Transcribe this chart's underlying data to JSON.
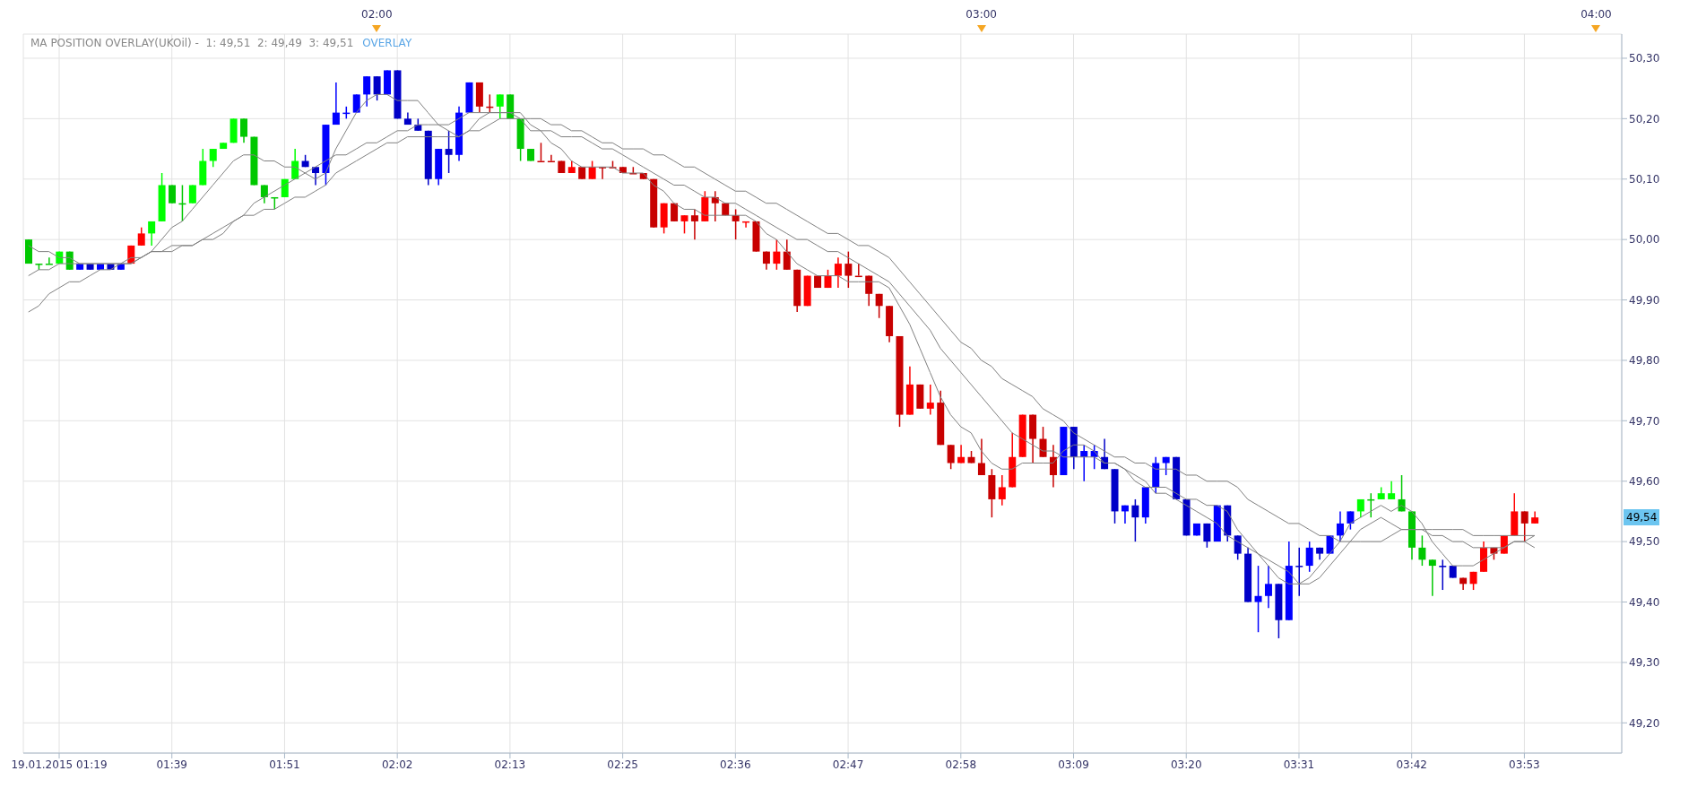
{
  "chart_data": {
    "type": "candlestick",
    "categories": [
      null,
      null,
      null,
      "19.01.2015 01:19",
      null,
      null,
      null,
      null,
      null,
      null,
      null,
      null,
      null,
      null,
      "01:39",
      null,
      null,
      null,
      null,
      null,
      null,
      null,
      null,
      null,
      null,
      "01:51",
      null,
      null,
      null,
      null,
      null,
      null,
      null,
      null,
      null,
      null,
      "02:02",
      null,
      null,
      null,
      null,
      null,
      null,
      null,
      null,
      null,
      null,
      "02:13",
      null,
      null,
      null,
      null,
      null,
      null,
      null,
      null,
      null,
      null,
      "02:25",
      null,
      null,
      null,
      null,
      null,
      null,
      null,
      null,
      null,
      null,
      "02:36",
      null,
      null,
      null,
      null,
      null,
      null,
      null,
      null,
      null,
      null,
      "02:47",
      null,
      null,
      null,
      null,
      null,
      null,
      null,
      null,
      null,
      null,
      "02:58",
      null,
      null,
      null,
      null,
      null,
      null,
      null,
      null,
      null,
      null,
      "03:09",
      null,
      null,
      null,
      null,
      null,
      null,
      null,
      null,
      null,
      null,
      "03:20",
      null,
      null,
      null,
      null,
      null,
      null,
      null,
      null,
      null,
      null,
      "03:31",
      null,
      null,
      null,
      null,
      null,
      null,
      null,
      null,
      null,
      null,
      "03:42",
      null,
      null,
      null,
      null,
      null,
      null,
      null,
      null,
      null,
      null,
      "03:53",
      null,
      null,
      null,
      null,
      null,
      null,
      null,
      null,
      null
    ],
    "ohlc": [
      [
        50.0,
        50.0,
        49.96,
        49.96
      ],
      [
        49.96,
        49.96,
        49.95,
        49.96
      ],
      [
        49.96,
        49.97,
        49.96,
        49.96
      ],
      [
        49.96,
        49.98,
        49.96,
        49.98
      ],
      [
        49.98,
        49.98,
        49.95,
        49.95
      ],
      [
        49.95,
        49.96,
        49.95,
        49.96
      ],
      [
        49.96,
        49.96,
        49.95,
        49.95
      ],
      [
        49.95,
        49.96,
        49.95,
        49.96
      ],
      [
        49.96,
        49.96,
        49.95,
        49.95
      ],
      [
        49.95,
        49.96,
        49.95,
        49.96
      ],
      [
        49.96,
        49.99,
        49.96,
        49.99
      ],
      [
        49.99,
        50.02,
        49.99,
        50.01
      ],
      [
        50.01,
        50.03,
        49.99,
        50.03
      ],
      [
        50.03,
        50.11,
        50.03,
        50.09
      ],
      [
        50.09,
        50.09,
        50.06,
        50.06
      ],
      [
        50.06,
        50.09,
        50.03,
        50.06
      ],
      [
        50.06,
        50.09,
        50.06,
        50.09
      ],
      [
        50.09,
        50.15,
        50.09,
        50.13
      ],
      [
        50.13,
        50.15,
        50.12,
        50.15
      ],
      [
        50.15,
        50.16,
        50.15,
        50.16
      ],
      [
        50.16,
        50.2,
        50.16,
        50.2
      ],
      [
        50.2,
        50.2,
        50.16,
        50.17
      ],
      [
        50.17,
        50.17,
        50.09,
        50.09
      ],
      [
        50.09,
        50.09,
        50.06,
        50.07
      ],
      [
        50.07,
        50.07,
        50.05,
        50.07
      ],
      [
        50.07,
        50.1,
        50.07,
        50.1
      ],
      [
        50.1,
        50.15,
        50.1,
        50.13
      ],
      [
        50.13,
        50.14,
        50.12,
        50.12
      ],
      [
        50.12,
        50.12,
        50.09,
        50.11
      ],
      [
        50.11,
        50.19,
        50.09,
        50.19
      ],
      [
        50.19,
        50.26,
        50.19,
        50.21
      ],
      [
        50.21,
        50.22,
        50.2,
        50.21
      ],
      [
        50.21,
        50.24,
        50.21,
        50.24
      ],
      [
        50.24,
        50.27,
        50.22,
        50.27
      ],
      [
        50.27,
        50.27,
        50.23,
        50.24
      ],
      [
        50.24,
        50.28,
        50.24,
        50.28
      ],
      [
        50.28,
        50.28,
        50.2,
        50.2
      ],
      [
        50.2,
        50.21,
        50.19,
        50.19
      ],
      [
        50.19,
        50.2,
        50.18,
        50.18
      ],
      [
        50.18,
        50.18,
        50.09,
        50.1
      ],
      [
        50.1,
        50.15,
        50.09,
        50.15
      ],
      [
        50.15,
        50.18,
        50.11,
        50.14
      ],
      [
        50.14,
        50.22,
        50.13,
        50.21
      ],
      [
        50.21,
        50.26,
        50.21,
        50.26
      ],
      [
        50.26,
        50.26,
        50.21,
        50.22
      ],
      [
        50.22,
        50.24,
        50.21,
        50.22
      ],
      [
        50.22,
        50.24,
        50.2,
        50.24
      ],
      [
        50.24,
        50.24,
        50.2,
        50.2
      ],
      [
        50.2,
        50.2,
        50.13,
        50.15
      ],
      [
        50.15,
        50.15,
        50.13,
        50.13
      ],
      [
        50.13,
        50.16,
        50.13,
        50.13
      ],
      [
        50.13,
        50.14,
        50.13,
        50.13
      ],
      [
        50.13,
        50.13,
        50.11,
        50.11
      ],
      [
        50.11,
        50.13,
        50.11,
        50.12
      ],
      [
        50.12,
        50.12,
        50.1,
        50.1
      ],
      [
        50.1,
        50.13,
        50.1,
        50.12
      ],
      [
        50.12,
        50.12,
        50.1,
        50.12
      ],
      [
        50.12,
        50.13,
        50.12,
        50.12
      ],
      [
        50.12,
        50.12,
        50.11,
        50.11
      ],
      [
        50.11,
        50.12,
        50.11,
        50.11
      ],
      [
        50.11,
        50.11,
        50.1,
        50.1
      ],
      [
        50.1,
        50.1,
        50.02,
        50.02
      ],
      [
        50.02,
        50.06,
        50.01,
        50.06
      ],
      [
        50.06,
        50.06,
        50.03,
        50.03
      ],
      [
        50.03,
        50.04,
        50.01,
        50.04
      ],
      [
        50.04,
        50.05,
        50.0,
        50.03
      ],
      [
        50.03,
        50.08,
        50.03,
        50.07
      ],
      [
        50.07,
        50.08,
        50.03,
        50.06
      ],
      [
        50.06,
        50.06,
        50.04,
        50.04
      ],
      [
        50.04,
        50.05,
        50.0,
        50.03
      ],
      [
        50.03,
        50.03,
        50.02,
        50.03
      ],
      [
        50.03,
        50.03,
        49.98,
        49.98
      ],
      [
        49.98,
        49.98,
        49.95,
        49.96
      ],
      [
        49.96,
        50.0,
        49.95,
        49.98
      ],
      [
        49.98,
        50.0,
        49.95,
        49.95
      ],
      [
        49.95,
        49.95,
        49.88,
        49.89
      ],
      [
        49.89,
        49.94,
        49.89,
        49.94
      ],
      [
        49.94,
        49.94,
        49.92,
        49.92
      ],
      [
        49.92,
        49.95,
        49.92,
        49.94
      ],
      [
        49.94,
        49.97,
        49.92,
        49.96
      ],
      [
        49.96,
        49.98,
        49.92,
        49.94
      ],
      [
        49.94,
        49.96,
        49.94,
        49.94
      ],
      [
        49.94,
        49.94,
        49.89,
        49.91
      ],
      [
        49.91,
        49.91,
        49.87,
        49.89
      ],
      [
        49.89,
        49.89,
        49.83,
        49.84
      ],
      [
        49.84,
        49.84,
        49.69,
        49.71
      ],
      [
        49.71,
        49.79,
        49.71,
        49.76
      ],
      [
        49.76,
        49.76,
        49.72,
        49.72
      ],
      [
        49.72,
        49.76,
        49.71,
        49.73
      ],
      [
        49.73,
        49.75,
        49.66,
        49.66
      ],
      [
        49.66,
        49.66,
        49.62,
        49.63
      ],
      [
        49.63,
        49.66,
        49.63,
        49.64
      ],
      [
        49.64,
        49.65,
        49.63,
        49.63
      ],
      [
        49.63,
        49.67,
        49.61,
        49.61
      ],
      [
        49.61,
        49.62,
        49.54,
        49.57
      ],
      [
        49.57,
        49.61,
        49.56,
        49.59
      ],
      [
        49.59,
        49.68,
        49.59,
        49.64
      ],
      [
        49.64,
        49.71,
        49.64,
        49.71
      ],
      [
        49.71,
        49.71,
        49.63,
        49.67
      ],
      [
        49.67,
        49.69,
        49.64,
        49.64
      ],
      [
        49.64,
        49.66,
        49.59,
        49.61
      ],
      [
        49.61,
        49.69,
        49.61,
        49.69
      ],
      [
        49.69,
        49.69,
        49.62,
        49.64
      ],
      [
        49.64,
        49.66,
        49.6,
        49.65
      ],
      [
        49.64,
        49.66,
        49.62,
        49.65
      ],
      [
        49.64,
        49.67,
        49.62,
        49.62
      ],
      [
        49.62,
        49.62,
        49.53,
        49.55
      ],
      [
        49.55,
        49.56,
        49.53,
        49.56
      ],
      [
        49.56,
        49.57,
        49.5,
        49.54
      ],
      [
        49.54,
        49.59,
        49.53,
        49.59
      ],
      [
        49.59,
        49.64,
        49.58,
        49.63
      ],
      [
        49.63,
        49.64,
        49.61,
        49.64
      ],
      [
        49.64,
        49.64,
        49.57,
        49.57
      ],
      [
        49.57,
        49.57,
        49.51,
        49.51
      ],
      [
        49.51,
        49.53,
        49.51,
        49.53
      ],
      [
        49.53,
        49.53,
        49.49,
        49.5
      ],
      [
        49.5,
        49.56,
        49.5,
        49.56
      ],
      [
        49.56,
        49.56,
        49.5,
        49.51
      ],
      [
        49.51,
        49.51,
        49.47,
        49.48
      ],
      [
        49.48,
        49.49,
        49.4,
        49.4
      ],
      [
        49.4,
        49.46,
        49.35,
        49.41
      ],
      [
        49.41,
        49.46,
        49.39,
        49.43
      ],
      [
        49.43,
        49.43,
        49.34,
        49.37
      ],
      [
        49.37,
        49.5,
        49.37,
        49.46
      ],
      [
        49.46,
        49.49,
        49.41,
        49.46
      ],
      [
        49.46,
        49.5,
        49.45,
        49.49
      ],
      [
        49.49,
        49.49,
        49.47,
        49.48
      ],
      [
        49.48,
        49.51,
        49.48,
        49.51
      ],
      [
        49.51,
        49.55,
        49.5,
        49.53
      ],
      [
        49.53,
        49.55,
        49.52,
        49.55
      ],
      [
        49.55,
        49.57,
        49.54,
        49.57
      ],
      [
        49.57,
        49.58,
        49.54,
        49.57
      ],
      [
        49.57,
        49.59,
        49.57,
        49.58
      ],
      [
        49.58,
        49.6,
        49.57,
        49.57
      ],
      [
        49.57,
        49.61,
        49.55,
        49.55
      ],
      [
        49.55,
        49.55,
        49.47,
        49.49
      ],
      [
        49.49,
        49.51,
        49.46,
        49.47
      ],
      [
        49.47,
        49.47,
        49.41,
        49.46
      ],
      [
        49.46,
        49.47,
        49.42,
        49.46
      ],
      [
        49.46,
        49.46,
        49.44,
        49.44
      ],
      [
        49.44,
        49.44,
        49.42,
        49.43
      ],
      [
        49.43,
        49.45,
        49.42,
        49.45
      ],
      [
        49.45,
        49.5,
        49.45,
        49.49
      ],
      [
        49.49,
        49.49,
        49.47,
        49.48
      ],
      [
        49.48,
        49.51,
        49.48,
        49.51
      ],
      [
        49.51,
        49.58,
        49.51,
        49.55
      ],
      [
        49.55,
        49.55,
        49.5,
        49.53
      ],
      [
        49.53,
        49.55,
        49.53,
        49.54
      ],
      null,
      null,
      null,
      null,
      null,
      null,
      null,
      null
    ],
    "colors": [
      "#00c800",
      "#00c800",
      "#00c800",
      "#00ff00",
      "#00c800",
      "#0000ff",
      "#0000c8",
      "#0000ff",
      "#0000c8",
      "#0000ff",
      "#ff0000",
      "#ff0000",
      "#00ff00",
      "#00ff00",
      "#00c800",
      "#00c800",
      "#00ff00",
      "#00ff00",
      "#00ff00",
      "#00ff00",
      "#00ff00",
      "#00c800",
      "#00c800",
      "#00c800",
      "#00c800",
      "#00ff00",
      "#00ff00",
      "#0000c8",
      "#0000c8",
      "#0000ff",
      "#0000ff",
      "#0000ff",
      "#0000ff",
      "#0000ff",
      "#0000c8",
      "#0000ff",
      "#0000c8",
      "#0000c8",
      "#0000c8",
      "#0000c8",
      "#0000ff",
      "#0000c8",
      "#0000ff",
      "#0000ff",
      "#c80000",
      "#c80000",
      "#00ff00",
      "#00c800",
      "#00c800",
      "#00c800",
      "#c80000",
      "#c80000",
      "#c80000",
      "#ff0000",
      "#c80000",
      "#ff0000",
      "#c80000",
      "#c80000",
      "#c80000",
      "#c80000",
      "#c80000",
      "#c80000",
      "#ff0000",
      "#c80000",
      "#ff0000",
      "#c80000",
      "#ff0000",
      "#c80000",
      "#c80000",
      "#c80000",
      "#ff0000",
      "#c80000",
      "#c80000",
      "#ff0000",
      "#c80000",
      "#c80000",
      "#ff0000",
      "#c80000",
      "#ff0000",
      "#ff0000",
      "#c80000",
      "#c80000",
      "#c80000",
      "#c80000",
      "#c80000",
      "#c80000",
      "#ff0000",
      "#c80000",
      "#ff0000",
      "#c80000",
      "#c80000",
      "#ff0000",
      "#c80000",
      "#c80000",
      "#c80000",
      "#ff0000",
      "#ff0000",
      "#ff0000",
      "#c80000",
      "#c80000",
      "#c80000",
      "#0000ff",
      "#0000c8",
      "#0000ff",
      "#0000ff",
      "#0000c8",
      "#0000c8",
      "#0000ff",
      "#0000c8",
      "#0000ff",
      "#0000ff",
      "#0000ff",
      "#0000c8",
      "#0000c8",
      "#0000ff",
      "#0000c8",
      "#0000ff",
      "#0000c8",
      "#0000c8",
      "#0000c8",
      "#0000ff",
      "#0000ff",
      "#0000c8",
      "#0000ff",
      "#0000c8",
      "#0000ff",
      "#0000c8",
      "#0000ff",
      "#0000ff",
      "#0000ff",
      "#00ff00",
      "#00c800",
      "#00ff00",
      "#00ff00",
      "#00c800",
      "#00c800",
      "#00c800",
      "#00c800",
      "#0000c8",
      "#0000c8",
      "#c80000",
      "#ff0000",
      "#ff0000",
      "#c80000",
      "#ff0000",
      "#ff0000",
      "#c80000",
      "#ff0000",
      null,
      null,
      null,
      null,
      null,
      null,
      null,
      null
    ],
    "series": [
      {
        "type": "line",
        "color": "#808080",
        "values": [
          49.99,
          49.98,
          49.98,
          49.97,
          49.97,
          49.96,
          49.96,
          49.96,
          49.96,
          49.96,
          49.96,
          49.97,
          49.98,
          50.0,
          50.02,
          50.03,
          50.05,
          50.07,
          50.09,
          50.11,
          50.13,
          50.14,
          50.14,
          50.13,
          50.13,
          50.12,
          50.12,
          50.11,
          50.1,
          50.11,
          50.15,
          50.18,
          50.21,
          50.23,
          50.24,
          50.24,
          50.23,
          50.23,
          50.23,
          50.21,
          50.19,
          50.18,
          50.17,
          50.18,
          50.2,
          50.21,
          50.21,
          50.21,
          50.21,
          50.19,
          50.18,
          50.16,
          50.15,
          50.13,
          50.12,
          50.12,
          50.12,
          50.12,
          50.11,
          50.11,
          50.11,
          50.09,
          50.08,
          50.06,
          50.05,
          50.05,
          50.04,
          50.04,
          50.04,
          50.04,
          50.04,
          50.03,
          50.01,
          50.0,
          49.98,
          49.96,
          49.95,
          49.94,
          49.94,
          49.94,
          49.93,
          49.93,
          49.93,
          49.93,
          49.92,
          49.89,
          49.86,
          49.82,
          49.78,
          49.74,
          49.71,
          49.69,
          49.68,
          49.65,
          49.63,
          49.62,
          49.62,
          49.63,
          49.63,
          49.63,
          49.63,
          49.65,
          49.66,
          49.66,
          49.65,
          49.63,
          49.63,
          49.62,
          49.6,
          49.59,
          49.59,
          49.59,
          49.58,
          49.57,
          49.57,
          49.56,
          49.56,
          49.55,
          49.52,
          49.5,
          49.48,
          49.46,
          49.44,
          49.43,
          49.43,
          49.44,
          49.46,
          49.48,
          49.5,
          49.53,
          49.54,
          49.55,
          49.56,
          49.55,
          49.56,
          49.55,
          49.53,
          49.5,
          49.48,
          49.46,
          49.46,
          49.46,
          49.47,
          49.48,
          49.49,
          49.5,
          49.5,
          49.51,
          null,
          null,
          null,
          null,
          null,
          null,
          null,
          null
        ]
      },
      {
        "type": "line",
        "color": "#808080",
        "values": [
          49.94,
          49.95,
          49.95,
          49.96,
          49.96,
          49.96,
          49.96,
          49.96,
          49.96,
          49.96,
          49.97,
          49.97,
          49.98,
          49.98,
          49.98,
          49.99,
          49.99,
          50.0,
          50.0,
          50.01,
          50.03,
          50.04,
          50.06,
          50.07,
          50.08,
          50.09,
          50.1,
          50.11,
          50.12,
          50.13,
          50.14,
          50.14,
          50.15,
          50.16,
          50.16,
          50.17,
          50.18,
          50.18,
          50.19,
          50.19,
          50.19,
          50.19,
          50.2,
          50.21,
          50.21,
          50.21,
          50.21,
          50.21,
          50.2,
          50.18,
          50.18,
          50.18,
          50.17,
          50.17,
          50.17,
          50.16,
          50.15,
          50.15,
          50.14,
          50.13,
          50.12,
          50.11,
          50.1,
          50.09,
          50.09,
          50.08,
          50.07,
          50.07,
          50.06,
          50.06,
          50.05,
          50.04,
          50.03,
          50.02,
          50.01,
          50.0,
          50.0,
          49.99,
          49.98,
          49.98,
          49.97,
          49.96,
          49.95,
          49.94,
          49.93,
          49.91,
          49.89,
          49.87,
          49.85,
          49.82,
          49.8,
          49.78,
          49.76,
          49.74,
          49.72,
          49.7,
          49.68,
          49.67,
          49.66,
          49.65,
          49.65,
          49.64,
          49.64,
          49.64,
          49.64,
          49.63,
          49.63,
          49.62,
          49.61,
          49.6,
          49.58,
          49.58,
          49.57,
          49.56,
          49.55,
          49.54,
          49.53,
          49.51,
          49.5,
          49.49,
          49.48,
          49.47,
          49.46,
          49.45,
          49.43,
          49.43,
          49.44,
          49.46,
          49.48,
          49.5,
          49.52,
          49.53,
          49.54,
          49.53,
          49.52,
          49.52,
          49.52,
          49.51,
          49.51,
          49.5,
          49.5,
          49.49,
          49.49,
          49.49,
          49.49,
          49.5,
          49.5,
          49.49,
          null,
          null,
          null,
          null,
          null,
          null,
          null,
          null
        ]
      },
      {
        "type": "line",
        "color": "#808080",
        "values": [
          49.88,
          49.89,
          49.91,
          49.92,
          49.93,
          49.93,
          49.94,
          49.95,
          49.95,
          49.96,
          49.96,
          49.97,
          49.98,
          49.98,
          49.99,
          49.99,
          49.99,
          50.0,
          50.01,
          50.02,
          50.03,
          50.04,
          50.04,
          50.05,
          50.05,
          50.06,
          50.07,
          50.07,
          50.08,
          50.09,
          50.11,
          50.12,
          50.13,
          50.14,
          50.15,
          50.16,
          50.16,
          50.17,
          50.17,
          50.17,
          50.17,
          50.17,
          50.17,
          50.18,
          50.18,
          50.19,
          50.2,
          50.2,
          50.2,
          50.2,
          50.2,
          50.19,
          50.19,
          50.18,
          50.18,
          50.17,
          50.16,
          50.16,
          50.15,
          50.15,
          50.15,
          50.14,
          50.14,
          50.13,
          50.12,
          50.12,
          50.11,
          50.1,
          50.09,
          50.08,
          50.08,
          50.07,
          50.06,
          50.06,
          50.05,
          50.04,
          50.03,
          50.02,
          50.01,
          50.01,
          50.0,
          49.99,
          49.99,
          49.98,
          49.97,
          49.95,
          49.93,
          49.91,
          49.89,
          49.87,
          49.85,
          49.83,
          49.82,
          49.8,
          49.79,
          49.77,
          49.76,
          49.75,
          49.74,
          49.72,
          49.71,
          49.7,
          49.68,
          49.67,
          49.66,
          49.65,
          49.64,
          49.64,
          49.63,
          49.63,
          49.62,
          49.62,
          49.62,
          49.61,
          49.61,
          49.6,
          49.6,
          49.6,
          49.59,
          49.57,
          49.56,
          49.55,
          49.54,
          49.53,
          49.53,
          49.52,
          49.51,
          49.51,
          49.5,
          49.5,
          49.5,
          49.5,
          49.5,
          49.51,
          49.52,
          49.52,
          49.52,
          49.52,
          49.52,
          49.52,
          49.52,
          49.51,
          49.51,
          49.51,
          49.51,
          49.51,
          49.51,
          49.51,
          null,
          null,
          null,
          null,
          null,
          null,
          null,
          null
        ]
      }
    ],
    "ylim": [
      49.15,
      50.34
    ],
    "yticks": [
      {
        "value": 49.2,
        "label": "49,20"
      },
      {
        "value": 49.3,
        "label": "49,30"
      },
      {
        "value": 49.4,
        "label": "49,40"
      },
      {
        "value": 49.5,
        "label": "49,50"
      },
      {
        "value": 49.6,
        "label": "49,60"
      },
      {
        "value": 49.7,
        "label": "49,70"
      },
      {
        "value": 49.8,
        "label": "49,80"
      },
      {
        "value": 49.9,
        "label": "49,90"
      },
      {
        "value": 50.0,
        "label": "50,00"
      },
      {
        "value": 50.1,
        "label": "50,10"
      },
      {
        "value": 50.2,
        "label": "50,20"
      },
      {
        "value": 50.3,
        "label": "50,30"
      }
    ],
    "grid": true,
    "annotations": [
      "MA POSITION OVERLAY(UKOil) -  1: 49,51  2: 49,49  3: 49,51",
      "OVERLAY",
      "02:00",
      "03:00",
      "04:00",
      {
        "text": "49,54",
        "y": 49.54
      }
    ]
  }
}
